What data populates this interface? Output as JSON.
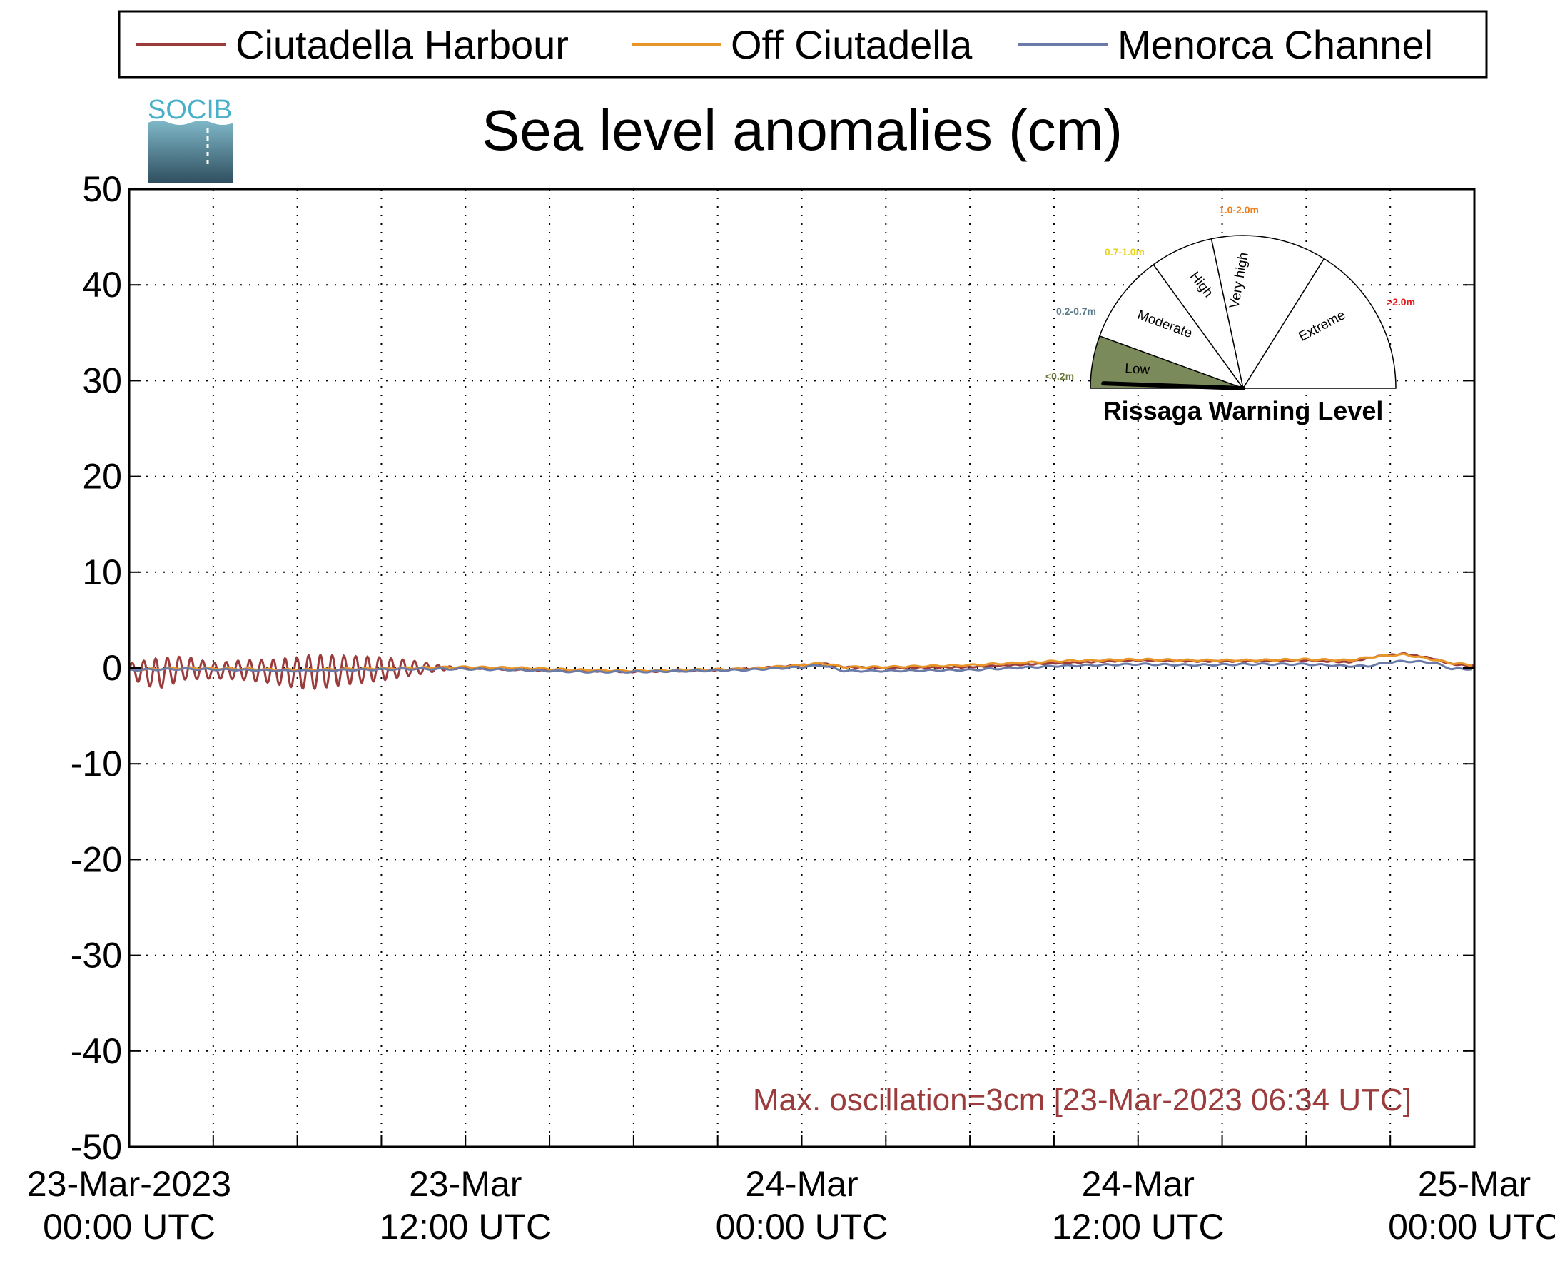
{
  "chart_data": {
    "type": "line",
    "title": "Sea level anomalies (cm)",
    "xlabel": "",
    "ylabel": "",
    "x_unit": "hours since 23-Mar-2023 00:00 UTC",
    "xlim": [
      0,
      48
    ],
    "ylim": [
      -50,
      50
    ],
    "yticks": [
      50,
      40,
      30,
      20,
      10,
      0,
      -10,
      -20,
      -30,
      -40,
      -50
    ],
    "ytick_labels": [
      "50",
      "40",
      "30",
      "20",
      "10",
      "0",
      "-10",
      "-20",
      "-30",
      "-40",
      "-50"
    ],
    "xtick_labels": [
      {
        "x": 0,
        "line1": "23-Mar-2023",
        "line2": "00:00 UTC"
      },
      {
        "x": 12,
        "line1": "23-Mar",
        "line2": "12:00 UTC"
      },
      {
        "x": 24,
        "line1": "24-Mar",
        "line2": "00:00 UTC"
      },
      {
        "x": 36,
        "line1": "24-Mar",
        "line2": "12:00 UTC"
      },
      {
        "x": 48,
        "line1": "25-Mar",
        "line2": "00:00 UTC"
      }
    ],
    "grid": true,
    "legend_position": "top",
    "series": [
      {
        "name": "Ciutadella Harbour",
        "color": "#9b3b3b",
        "oscillation": {
          "amplitude_envelope": [
            [
              0,
              0.8
            ],
            [
              1,
              1.6
            ],
            [
              3,
              0.8
            ],
            [
              5,
              1.2
            ],
            [
              6.5,
              1.8
            ],
            [
              9,
              1.2
            ],
            [
              10.5,
              0.6
            ],
            [
              11,
              0.3
            ],
            [
              11.5,
              0.15
            ],
            [
              12,
              0.05
            ],
            [
              48,
              0.05
            ]
          ],
          "period_hours": 0.42
        },
        "x": [
          0,
          1,
          2,
          3,
          4,
          6,
          8,
          10,
          11,
          12,
          14,
          16,
          18,
          20,
          22,
          24,
          24.7,
          25.5,
          27,
          30,
          33,
          36,
          38,
          40,
          42,
          43.5,
          44.5,
          45.5,
          46.5,
          47.2,
          48
        ],
        "y": [
          -0.3,
          -0.6,
          0,
          -0.3,
          -0.2,
          -0.5,
          -0.2,
          0,
          0,
          0,
          -0.2,
          -0.3,
          -0.4,
          -0.3,
          -0.1,
          0.3,
          0.5,
          0.1,
          0,
          0.1,
          0.5,
          0.8,
          0.7,
          0.7,
          0.8,
          0.6,
          1.2,
          1.5,
          1.0,
          0.4,
          0.2
        ]
      },
      {
        "name": "Off Ciutadella",
        "color": "#e8962a",
        "x": [
          0,
          2,
          4,
          6,
          8,
          10,
          12,
          14,
          16,
          18,
          20,
          22,
          24,
          24.7,
          25.5,
          27,
          30,
          33,
          36,
          38,
          40,
          42,
          43.5,
          44.5,
          45.5,
          46.5,
          47.2,
          48
        ],
        "y": [
          -0.2,
          0,
          -0.1,
          -0.2,
          -0.1,
          0,
          0.1,
          0,
          -0.2,
          -0.3,
          -0.2,
          -0.1,
          0.3,
          0.5,
          0.1,
          0.1,
          0.3,
          0.7,
          0.9,
          0.8,
          0.8,
          0.9,
          0.8,
          1.2,
          1.4,
          0.9,
          0.5,
          0.3
        ]
      },
      {
        "name": "Menorca Channel",
        "color": "#6b7ba8",
        "x": [
          0,
          2,
          4,
          6,
          8,
          10,
          12,
          14,
          16,
          18,
          20,
          22,
          24,
          24.7,
          25.5,
          27,
          30,
          33,
          36,
          38,
          40,
          42,
          43.5,
          44.2,
          45,
          45.5,
          46.5,
          47.2,
          48
        ],
        "y": [
          -0.2,
          -0.1,
          -0.2,
          -0.3,
          -0.2,
          -0.1,
          -0.1,
          -0.2,
          -0.4,
          -0.4,
          -0.3,
          -0.2,
          0.1,
          0.3,
          -0.3,
          -0.3,
          -0.2,
          0.2,
          0.4,
          0.3,
          0.4,
          0.4,
          0.2,
          0.2,
          0.6,
          0.7,
          0.6,
          -0.1,
          -0.1
        ]
      }
    ],
    "annotation": {
      "text": "Max. oscillation=3cm [23-Mar-2023 06:34 UTC]",
      "color": "#9b3b3b"
    }
  },
  "gauge": {
    "title": "Rissaga Warning Level",
    "current_level": "Low",
    "sectors": [
      {
        "label": "Low",
        "range": "<0.2m",
        "range_color": "#6b7a3a",
        "fill": "#7a8a5a"
      },
      {
        "label": "Moderate",
        "range": "0.2-0.7m",
        "range_color": "#5a7a8a",
        "fill": "#ffffff"
      },
      {
        "label": "High",
        "range": "0.7-1.0m",
        "range_color": "#e8d21a",
        "fill": "#ffffff"
      },
      {
        "label": "Very high",
        "range": "1.0-2.0m",
        "range_color": "#f07e1a",
        "fill": "#ffffff"
      },
      {
        "label": "Extreme",
        "range": ">2.0m",
        "range_color": "#e81a1a",
        "fill": "#ffffff"
      }
    ]
  },
  "logo": {
    "text": "SOCIB",
    "color": "#4ab0c8"
  }
}
